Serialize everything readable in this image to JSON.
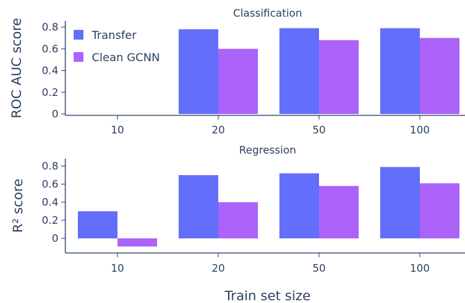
{
  "chart_data": [
    {
      "type": "bar",
      "title": "Classification",
      "ylabel": "ROC AUC score",
      "xlabel": "",
      "categories": [
        "10",
        "20",
        "50",
        "100"
      ],
      "ylim": [
        0,
        0.85
      ],
      "yticks": [
        "0.8",
        "0.6",
        "0.4",
        "0.2",
        "0"
      ],
      "ytick_values": [
        0.8,
        0.6,
        0.4,
        0.2,
        0
      ],
      "series": [
        {
          "name": "Transfer",
          "color": "#636efa",
          "values": [
            null,
            0.78,
            0.79,
            0.79
          ]
        },
        {
          "name": "Clean GCNN",
          "color": "#ab63fa",
          "values": [
            null,
            0.6,
            0.68,
            0.7
          ]
        }
      ],
      "legend": "top-left"
    },
    {
      "type": "bar",
      "title": "Regression",
      "ylabel": "R² score",
      "xlabel": "Train set size",
      "categories": [
        "10",
        "20",
        "50",
        "100"
      ],
      "ylim": [
        -0.1,
        0.85
      ],
      "yticks": [
        "0.8",
        "0.6",
        "0.4",
        "0.2",
        "0"
      ],
      "ytick_values": [
        0.8,
        0.6,
        0.4,
        0.2,
        0
      ],
      "series": [
        {
          "name": "Transfer",
          "color": "#636efa",
          "values": [
            0.3,
            0.7,
            0.72,
            0.79
          ]
        },
        {
          "name": "Clean GCNN",
          "color": "#ab63fa",
          "values": [
            -0.09,
            0.4,
            0.58,
            0.61
          ]
        }
      ]
    }
  ]
}
